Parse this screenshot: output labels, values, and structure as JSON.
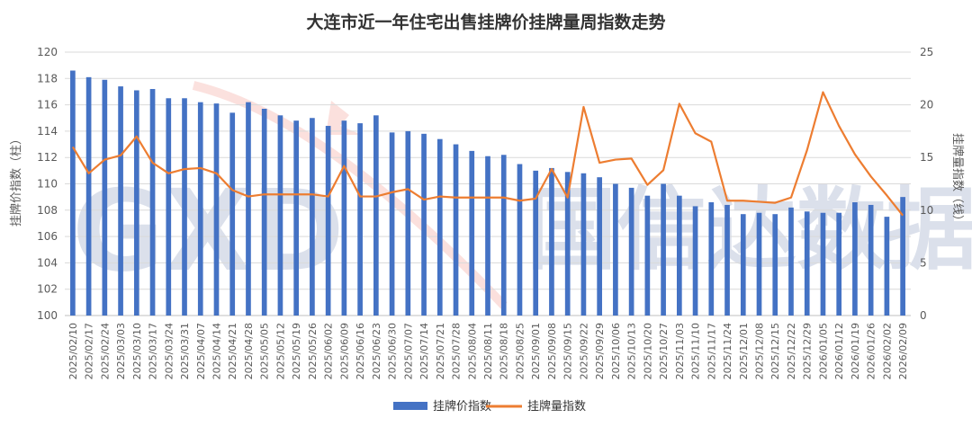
{
  "chart_data": {
    "type": "bar+line",
    "title": "大连市近一年住宅出售挂牌价挂牌量周指数走势",
    "y_left_label": "挂牌价指数（柱）",
    "y_right_label": "挂牌量指数（线）",
    "y_left_range": [
      100,
      120
    ],
    "y_left_ticks": [
      "100",
      "102",
      "104",
      "106",
      "108",
      "110",
      "112",
      "114",
      "116",
      "118",
      "120"
    ],
    "y_right_range": [
      0,
      25
    ],
    "y_right_ticks": [
      "0",
      "5",
      "10",
      "15",
      "20",
      "25"
    ],
    "categories": [
      "2025/02/10",
      "2025/02/17",
      "2025/02/24",
      "2025/03/03",
      "2025/03/10",
      "2025/03/17",
      "2025/03/24",
      "2025/03/31",
      "2025/04/07",
      "2025/04/14",
      "2025/04/21",
      "2025/04/28",
      "2025/05/05",
      "2025/05/12",
      "2025/05/19",
      "2025/05/26",
      "2025/06/02",
      "2025/06/09",
      "2025/06/16",
      "2025/06/23",
      "2025/06/30",
      "2025/07/07",
      "2025/07/14",
      "2025/07/21",
      "2025/07/28",
      "2025/08/04",
      "2025/08/11",
      "2025/08/18",
      "2025/08/25",
      "2025/09/01",
      "2025/09/08",
      "2025/09/15",
      "2025/09/22",
      "2025/09/29",
      "2025/10/06",
      "2025/10/13",
      "2025/10/20",
      "2025/10/27",
      "2025/11/03",
      "2025/11/10",
      "2025/11/17",
      "2025/11/24",
      "2025/12/01",
      "2025/12/08",
      "2025/12/15",
      "2025/12/22",
      "2025/12/29",
      "2026/01/05",
      "2026/01/12",
      "2026/01/19",
      "2026/01/26",
      "2026/02/02",
      "2026/02/09"
    ],
    "series": [
      {
        "name": "挂牌价指数",
        "axis": "left",
        "type": "bar",
        "color": "#4472C4",
        "values": [
          118.6,
          118.1,
          117.9,
          117.4,
          117.1,
          117.2,
          116.5,
          116.5,
          116.2,
          116.1,
          115.4,
          116.2,
          115.7,
          115.2,
          114.8,
          115.0,
          114.4,
          114.8,
          114.6,
          115.2,
          113.9,
          114.0,
          113.8,
          113.4,
          113.0,
          112.5,
          112.1,
          112.2,
          111.5,
          111.0,
          111.2,
          110.9,
          110.8,
          110.5,
          110.0,
          109.7,
          109.1,
          110.0,
          109.1,
          108.3,
          108.6,
          108.4,
          107.7,
          107.8,
          107.7,
          108.2,
          107.9,
          107.8,
          107.8,
          108.6,
          108.4,
          107.5,
          109.0
        ]
      },
      {
        "name": "挂牌量指数",
        "axis": "right",
        "type": "line",
        "color": "#ED7D31",
        "values": [
          16.0,
          13.5,
          14.8,
          15.2,
          17.0,
          14.5,
          13.5,
          13.9,
          14.0,
          13.5,
          11.9,
          11.3,
          11.5,
          11.5,
          11.5,
          11.5,
          11.3,
          14.2,
          11.3,
          11.3,
          11.7,
          12.0,
          11.0,
          11.3,
          11.2,
          11.2,
          11.2,
          11.2,
          10.9,
          11.1,
          13.9,
          11.2,
          19.8,
          14.5,
          14.8,
          14.9,
          12.4,
          13.8,
          20.1,
          17.3,
          16.5,
          10.9,
          10.9,
          10.8,
          10.7,
          11.2,
          15.7,
          21.2,
          18.0,
          15.3,
          13.2,
          11.4,
          9.5
        ]
      }
    ],
    "legend_position": "bottom",
    "grid": true
  },
  "watermark": {
    "text": "国信达数据",
    "logo_text": "GXD"
  }
}
